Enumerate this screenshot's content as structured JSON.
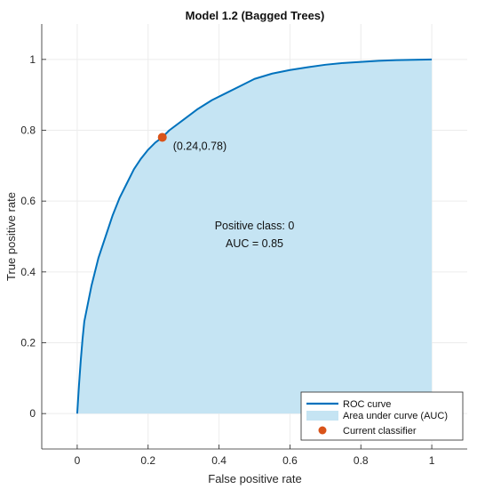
{
  "chart_data": {
    "type": "area",
    "title": "Model 1.2 (Bagged Trees)",
    "xlabel": "False positive rate",
    "ylabel": "True positive rate",
    "xlim": [
      -0.1,
      1.1
    ],
    "ylim": [
      -0.1,
      1.1
    ],
    "xticks": [
      "0",
      "0.2",
      "0.4",
      "0.6",
      "0.8",
      "1"
    ],
    "xtick_values": [
      0,
      0.2,
      0.4,
      0.6,
      0.8,
      1
    ],
    "yticks": [
      "0",
      "0.2",
      "0.4",
      "0.6",
      "0.8",
      "1"
    ],
    "ytick_values": [
      0,
      0.2,
      0.4,
      0.6,
      0.8,
      1
    ],
    "grid": true,
    "series": [
      {
        "name": "ROC curve",
        "x": [
          0,
          0.005,
          0.01,
          0.015,
          0.02,
          0.03,
          0.04,
          0.05,
          0.06,
          0.08,
          0.1,
          0.12,
          0.14,
          0.16,
          0.18,
          0.2,
          0.22,
          0.24,
          0.26,
          0.3,
          0.34,
          0.38,
          0.42,
          0.46,
          0.5,
          0.55,
          0.6,
          0.65,
          0.7,
          0.75,
          0.8,
          0.85,
          0.9,
          0.95,
          1.0
        ],
        "y": [
          0,
          0.08,
          0.15,
          0.21,
          0.26,
          0.31,
          0.36,
          0.4,
          0.44,
          0.5,
          0.56,
          0.61,
          0.65,
          0.69,
          0.72,
          0.745,
          0.765,
          0.78,
          0.8,
          0.83,
          0.86,
          0.885,
          0.905,
          0.925,
          0.945,
          0.96,
          0.97,
          0.978,
          0.985,
          0.99,
          0.993,
          0.996,
          0.998,
          0.999,
          1.0
        ],
        "color": "#0072BD"
      },
      {
        "name": "Area under curve (AUC)",
        "color": "#C5E4F3"
      }
    ],
    "current_classifier": {
      "name": "Current classifier",
      "x": 0.24,
      "y": 0.78,
      "label": "(0.24,0.78)",
      "color": "#D95319"
    },
    "annotation": {
      "line1": "Positive class: 0",
      "line2": "AUC = 0.85",
      "x": 0.5,
      "y": 0.52
    },
    "legend": {
      "placement": "bottom-right",
      "items": [
        "ROC curve",
        "Area under curve (AUC)",
        "Current classifier"
      ]
    }
  },
  "colors": {
    "grid": "#ECECEC",
    "axis": "#262626",
    "legend_border": "#262626"
  }
}
